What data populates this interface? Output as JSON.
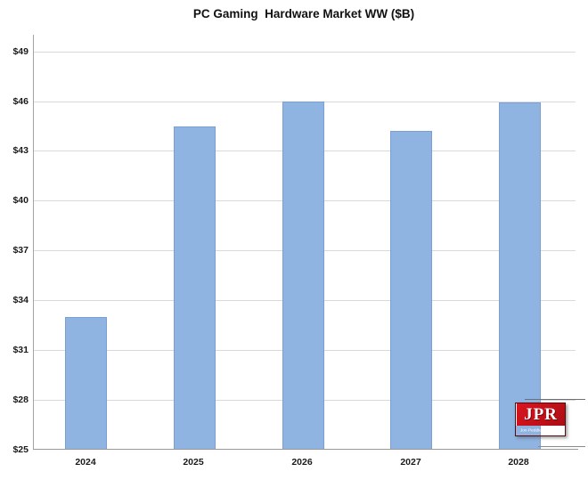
{
  "chart_data": {
    "type": "bar",
    "title": "PC Gaming  Hardware Market WW ($B)",
    "categories": [
      "2024",
      "2025",
      "2026",
      "2027",
      "2028"
    ],
    "values": [
      33.0,
      44.5,
      46.0,
      44.2,
      45.9
    ],
    "xlabel": "",
    "ylabel": "",
    "ylim": [
      25,
      50
    ],
    "ytick_values": [
      25,
      28,
      31,
      34,
      37,
      40,
      43,
      46,
      49
    ],
    "ytick_labels": [
      "$25",
      "$28",
      "$31",
      "$34",
      "$37",
      "$40",
      "$43",
      "$46",
      "$49"
    ],
    "grid": true,
    "legend_position": "none",
    "bar_color": "#8FB4E2",
    "bar_border_color": "#7C9FD3",
    "gridline_color": "#D9D9D9",
    "axis_color": "#9A9A9A"
  },
  "logo": {
    "text": "JPR",
    "subtext": "Jon Peddie Research",
    "bg_color": "#C4141C",
    "strip_color": "#0D0D0D"
  }
}
